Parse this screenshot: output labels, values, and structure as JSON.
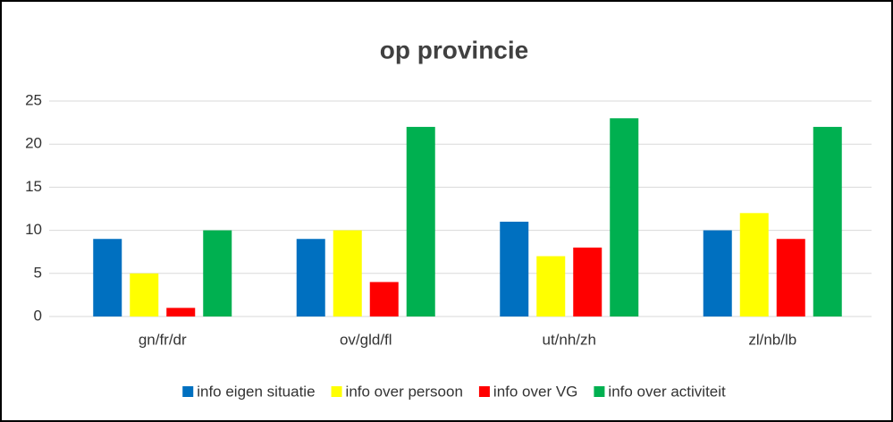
{
  "chart_data": {
    "type": "bar",
    "title": "op provincie",
    "categories": [
      "gn/fr/dr",
      "ov/gld/fl",
      "ut/nh/zh",
      "zl/nb/lb"
    ],
    "series": [
      {
        "name": "info eigen situatie",
        "color": "#0070c0",
        "values": [
          9,
          9,
          11,
          10
        ]
      },
      {
        "name": "info over persoon",
        "color": "#ffff00",
        "values": [
          5,
          10,
          7,
          12
        ]
      },
      {
        "name": "info over VG",
        "color": "#ff0000",
        "values": [
          1,
          4,
          8,
          9
        ]
      },
      {
        "name": "info over activiteit",
        "color": "#00b050",
        "values": [
          10,
          22,
          23,
          22
        ]
      }
    ],
    "ylim": [
      0,
      25
    ],
    "yticks": [
      0,
      5,
      10,
      15,
      20,
      25
    ],
    "grid": true,
    "legend": "bottom"
  }
}
